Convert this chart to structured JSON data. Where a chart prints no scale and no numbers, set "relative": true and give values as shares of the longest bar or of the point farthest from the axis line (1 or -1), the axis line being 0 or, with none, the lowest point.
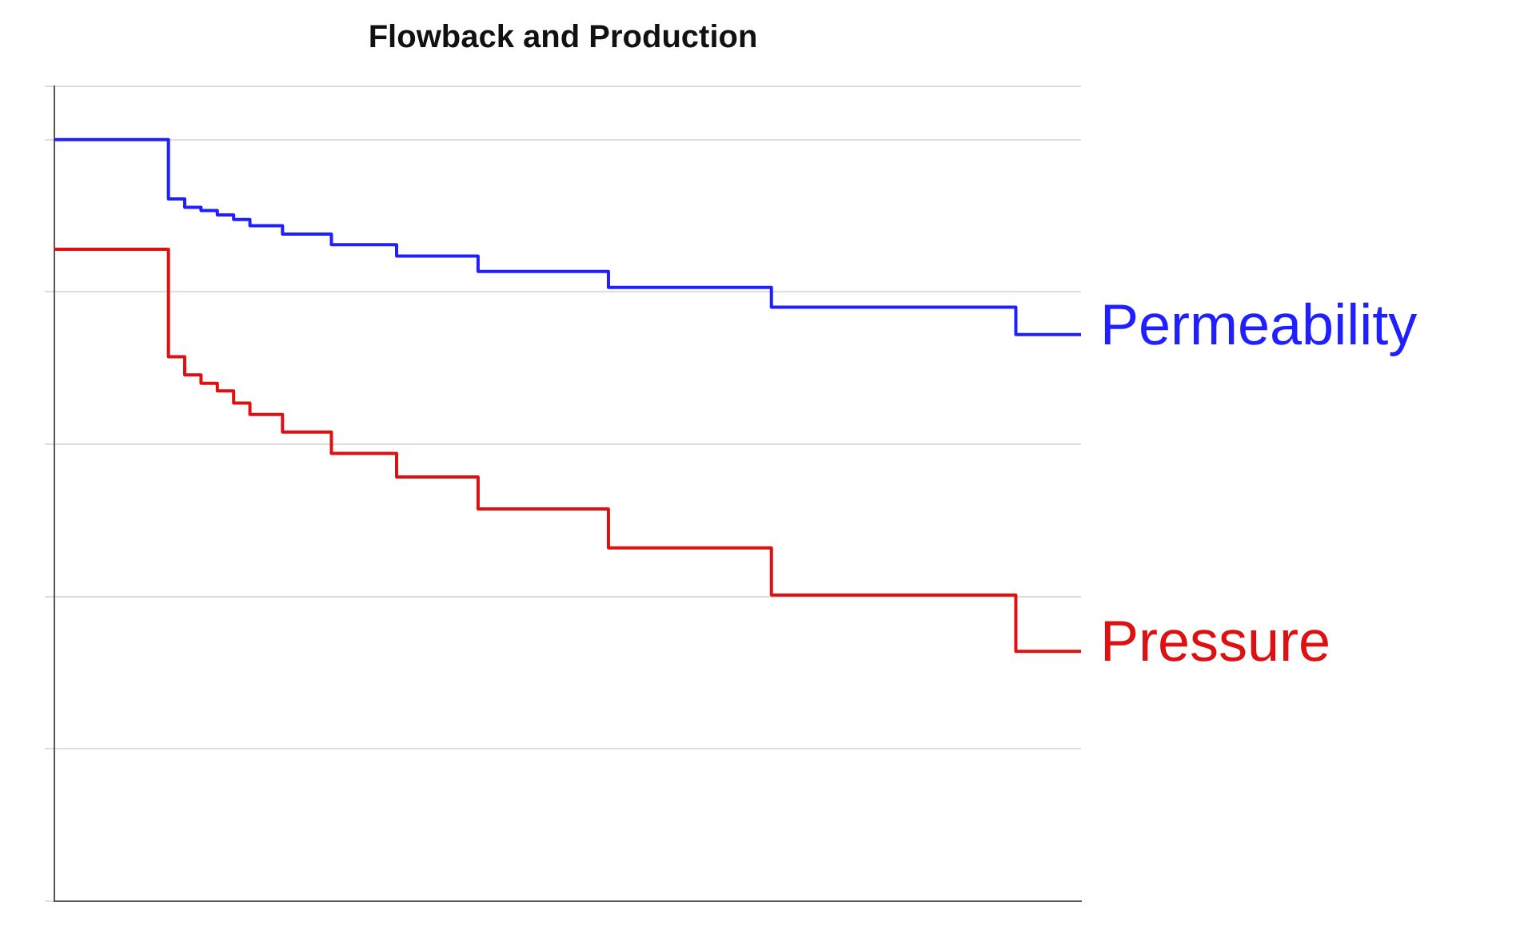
{
  "chart_data": {
    "type": "step",
    "title": "Flowback and Production",
    "relative": true,
    "grid": "y",
    "legend": "right",
    "categories": [
      null,
      null,
      null,
      null,
      null,
      null,
      null,
      null,
      null,
      null,
      null,
      null,
      null,
      null,
      null,
      null,
      null,
      null,
      null,
      null,
      null,
      null,
      null,
      null,
      null,
      null,
      null,
      null,
      null,
      null,
      null,
      null,
      null,
      null,
      null,
      null,
      null,
      null,
      null,
      null,
      null,
      null,
      null,
      null,
      null,
      null,
      null,
      null,
      null,
      null,
      null,
      null,
      null,
      null,
      null,
      null,
      null,
      null,
      null,
      null,
      null,
      null,
      null,
      null
    ],
    "series": [
      {
        "name": "Permeability",
        "color": "#1f1fff",
        "values": [
          1,
          1,
          1,
          1,
          1,
          1,
          1,
          0.922,
          0.911,
          0.907,
          0.901,
          0.895,
          0.887,
          0.887,
          0.876,
          0.876,
          0.876,
          0.862,
          0.862,
          0.862,
          0.862,
          0.847,
          0.847,
          0.847,
          0.847,
          0.847,
          0.827,
          0.827,
          0.827,
          0.827,
          0.827,
          0.827,
          0.827,
          0.827,
          0.806,
          0.806,
          0.806,
          0.806,
          0.806,
          0.806,
          0.806,
          0.806,
          0.806,
          0.806,
          0.78,
          0.78,
          0.78,
          0.78,
          0.78,
          0.78,
          0.78,
          0.78,
          0.78,
          0.78,
          0.78,
          0.78,
          0.78,
          0.78,
          0.78,
          0.744,
          0.744,
          0.744,
          0.744,
          0.744
        ]
      },
      {
        "name": "Pressure",
        "color": "#dd1111",
        "values": [
          0.856,
          0.856,
          0.856,
          0.856,
          0.856,
          0.856,
          0.856,
          0.715,
          0.691,
          0.68,
          0.67,
          0.654,
          0.639,
          0.639,
          0.616,
          0.616,
          0.616,
          0.588,
          0.588,
          0.588,
          0.588,
          0.557,
          0.557,
          0.557,
          0.557,
          0.557,
          0.515,
          0.515,
          0.515,
          0.515,
          0.515,
          0.515,
          0.515,
          0.515,
          0.464,
          0.464,
          0.464,
          0.464,
          0.464,
          0.464,
          0.464,
          0.464,
          0.464,
          0.464,
          0.402,
          0.402,
          0.402,
          0.402,
          0.402,
          0.402,
          0.402,
          0.402,
          0.402,
          0.402,
          0.402,
          0.402,
          0.402,
          0.402,
          0.402,
          0.328,
          0.328,
          0.328,
          0.328,
          0.328
        ]
      }
    ]
  }
}
